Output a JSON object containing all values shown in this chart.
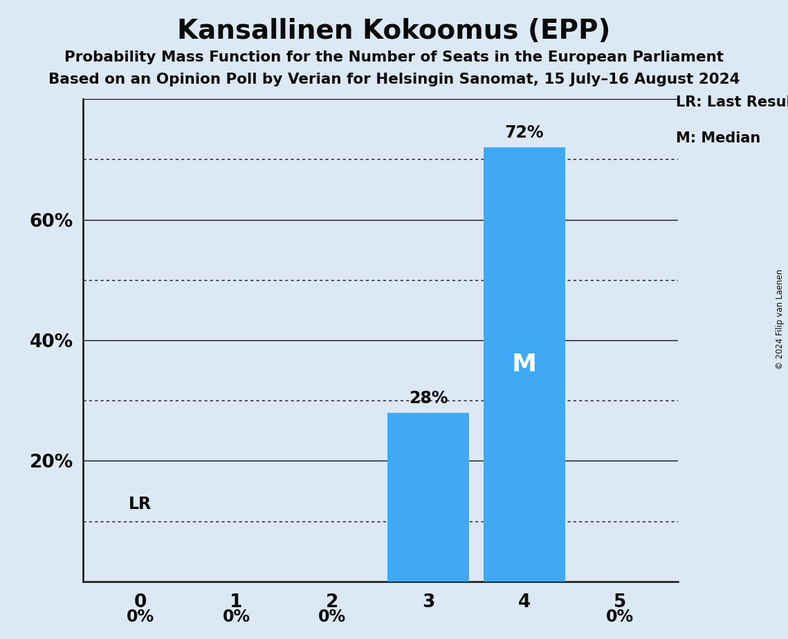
{
  "title": "Kansallinen Kokoomus (EPP)",
  "subtitle1": "Probability Mass Function for the Number of Seats in the European Parliament",
  "subtitle2": "Based on an Opinion Poll by Verian for Helsingin Sanomat, 15 July–16 August 2024",
  "copyright": "© 2024 Filip van Laenen",
  "categories": [
    0,
    1,
    2,
    3,
    4,
    5
  ],
  "values": [
    0,
    0,
    0,
    28,
    72,
    0
  ],
  "bar_color": "#3fa9f5",
  "background_color": "#dce9f5",
  "ylim": [
    0,
    80
  ],
  "yticks": [
    20,
    40,
    60
  ],
  "ytick_labels": [
    "20%",
    "40%",
    "60%"
  ],
  "dotted_grid": [
    10,
    30,
    50,
    70
  ],
  "solid_grid": [
    20,
    40,
    60,
    80
  ],
  "lr_value": 10,
  "median_bar": 4,
  "legend_lr": "LR: Last Result",
  "legend_m": "M: Median",
  "lr_line_color": "#111111",
  "axis_color": "#111111",
  "text_color": "#0a0a0a",
  "M_label_color": "#ffffff"
}
